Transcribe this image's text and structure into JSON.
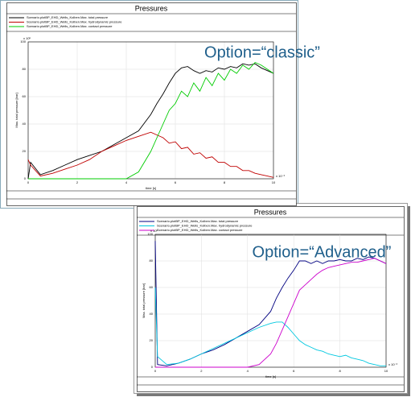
{
  "chart_data": [
    {
      "type": "line",
      "title": "Pressures",
      "annotation": "Option=“classic”",
      "annotation_color": "#1f5f8b",
      "x_label": "time [s]",
      "y_label": "Max. total pressure [bar]",
      "x_exponent": "x 10⁻³",
      "y_exponent": "x 10⁵",
      "x": [
        0,
        0.1,
        0.5,
        1,
        1.5,
        2,
        2.5,
        3,
        3.5,
        4,
        4.5,
        5,
        5.25,
        5.5,
        5.75,
        6,
        6.25,
        6.5,
        6.75,
        7,
        7.25,
        7.5,
        7.75,
        8,
        8.25,
        8.5,
        8.75,
        9,
        9.25,
        9.5,
        9.75,
        10
      ],
      "series": [
        {
          "name": "Scenario.plotBP_EHD_Wells_Kolben.Max. total pressure",
          "color": "#000000",
          "values": [
            0,
            12,
            3,
            6,
            10,
            14,
            17,
            20,
            25,
            30,
            35,
            47,
            55,
            62,
            70,
            77,
            81,
            82,
            79,
            77,
            79,
            78,
            81,
            80,
            82,
            81,
            84,
            83,
            84,
            81,
            79,
            77
          ]
        },
        {
          "name": "Scenario.plotBP_EHD_Wells_Kolben.Max. hydrodynamic pressure",
          "color": "#c00000",
          "values": [
            14,
            10,
            2,
            4,
            7,
            10,
            14,
            20,
            24,
            28,
            31,
            34,
            32,
            30,
            26,
            27,
            22,
            23,
            18,
            19,
            15,
            16,
            12,
            12,
            9,
            9,
            6,
            6,
            4,
            3,
            2,
            1
          ]
        },
        {
          "name": "Scenario.plotBP_EHD_Wells_Kolben.Max. contact pressure",
          "color": "#00cc00",
          "values": [
            0,
            0,
            0,
            0,
            0,
            0,
            0,
            0,
            0,
            0,
            5,
            20,
            30,
            40,
            50,
            55,
            64,
            60,
            70,
            64,
            74,
            68,
            77,
            72,
            80,
            77,
            83,
            80,
            85,
            83,
            80,
            77
          ]
        }
      ],
      "xlim": [
        0,
        10
      ],
      "ylim": [
        0,
        100
      ],
      "xticks": [
        0,
        2,
        4,
        6,
        8,
        10
      ],
      "yticks": [
        0,
        20,
        40,
        60,
        80,
        100
      ],
      "grid": true
    },
    {
      "type": "line",
      "title": "Pressures",
      "annotation": "Option=“Advanced”",
      "annotation_color": "#1f5f8b",
      "x_label": "time [s]",
      "y_label": "Max. total pressure [bar]",
      "x_exponent": "x 10⁻³",
      "y_exponent": "x 10⁵",
      "x": [
        0,
        0.1,
        0.5,
        1,
        1.5,
        2,
        2.5,
        3,
        3.5,
        4,
        4.5,
        5,
        5.25,
        5.5,
        5.75,
        6,
        6.25,
        6.5,
        6.75,
        7,
        7.25,
        7.5,
        7.75,
        8,
        8.25,
        8.5,
        8.75,
        9,
        9.25,
        9.5,
        9.75,
        10
      ],
      "series": [
        {
          "name": "Scenario.plotBP_EHD_Wells_Kolben.Max. total pressure",
          "color": "#000080",
          "values": [
            95,
            2,
            1,
            3,
            6,
            10,
            13,
            17,
            22,
            27,
            32,
            42,
            52,
            60,
            67,
            73,
            80,
            80,
            78,
            80,
            78,
            80,
            80,
            81,
            80,
            80,
            82,
            81,
            83,
            82,
            80,
            78
          ]
        },
        {
          "name": "Scenario.plotBP_EHD_Wells_Kolben.Max. hydrodynamic pressure",
          "color": "#00c8e0",
          "values": [
            60,
            8,
            2,
            3,
            6,
            10,
            14,
            18,
            22,
            26,
            30,
            33,
            34,
            34,
            30,
            25,
            20,
            17,
            15,
            13,
            12,
            10,
            9,
            8,
            9,
            7,
            6,
            5,
            3,
            2,
            1,
            1
          ]
        },
        {
          "name": "Scenario.plotBP_EHD_Wells_Kolben.Max. contact pressure",
          "color": "#cc00cc",
          "values": [
            0,
            0,
            0,
            0,
            0,
            0,
            0,
            0,
            0,
            0,
            2,
            10,
            18,
            28,
            38,
            48,
            58,
            62,
            66,
            70,
            73,
            75,
            76,
            77,
            78,
            79,
            79,
            80,
            81,
            82,
            80,
            78
          ]
        }
      ],
      "xlim": [
        0,
        10
      ],
      "ylim": [
        0,
        100
      ],
      "xticks": [
        0,
        2,
        4,
        6,
        8,
        10
      ],
      "yticks": [
        0,
        20,
        40,
        60,
        80,
        100
      ],
      "grid": true
    }
  ]
}
